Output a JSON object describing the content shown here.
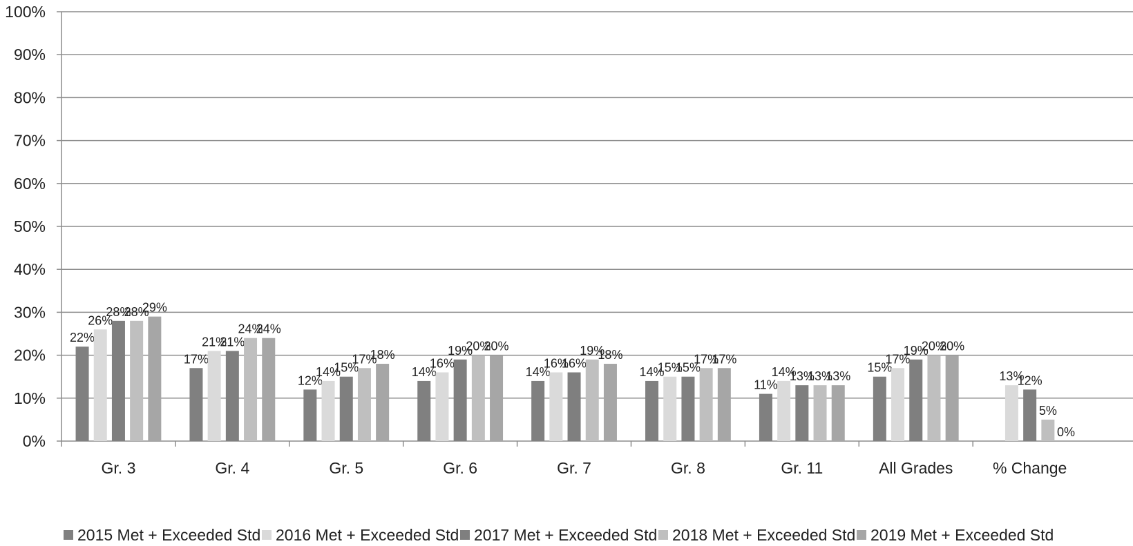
{
  "chart_data": {
    "type": "bar",
    "title": "",
    "xlabel": "",
    "ylabel": "",
    "ylim": [
      0,
      100
    ],
    "yticks": [
      "0%",
      "10%",
      "20%",
      "30%",
      "40%",
      "50%",
      "60%",
      "70%",
      "80%",
      "90%",
      "100%"
    ],
    "grid": true,
    "legend_position": "bottom",
    "categories": [
      "Gr. 3",
      "Gr. 4",
      "Gr. 5",
      "Gr. 6",
      "Gr. 7",
      "Gr. 8",
      "Gr. 11",
      "All Grades",
      "% Change"
    ],
    "series": [
      {
        "name": "2015 Met + Exceeded Std",
        "color": "#808080",
        "values": [
          22,
          17,
          12,
          14,
          14,
          14,
          11,
          15,
          null
        ],
        "labels": [
          "22%",
          "17%",
          "12%",
          "14%",
          "14%",
          "14%",
          "11%",
          "15%",
          ""
        ]
      },
      {
        "name": "2016 Met + Exceeded Std",
        "color": "#dadada",
        "values": [
          26,
          21,
          14,
          16,
          16,
          15,
          14,
          17,
          13
        ],
        "labels": [
          "26%",
          "21%",
          "14%",
          "16%",
          "16%",
          "15%",
          "14%",
          "17%",
          "13%"
        ]
      },
      {
        "name": "2017 Met + Exceeded Std",
        "color": "#7f7f7f",
        "values": [
          28,
          21,
          15,
          19,
          16,
          15,
          13,
          19,
          12
        ],
        "labels": [
          "28%",
          "21%",
          "15%",
          "19%",
          "16%",
          "15%",
          "13%",
          "19%",
          "12%"
        ]
      },
      {
        "name": "2018 Met + Exceeded Std",
        "color": "#bfbfbf",
        "values": [
          28,
          24,
          17,
          20,
          19,
          17,
          13,
          20,
          5
        ],
        "labels": [
          "28%",
          "24%",
          "17%",
          "20%",
          "19%",
          "17%",
          "13%",
          "20%",
          "5%"
        ]
      },
      {
        "name": "2019 Met + Exceeded Std",
        "color": "#a6a6a6",
        "values": [
          29,
          24,
          18,
          20,
          18,
          17,
          13,
          20,
          0
        ],
        "labels": [
          "29%",
          "24%",
          "18%",
          "20%",
          "18%",
          "17%",
          "13%",
          "20%",
          "0%"
        ]
      }
    ]
  }
}
